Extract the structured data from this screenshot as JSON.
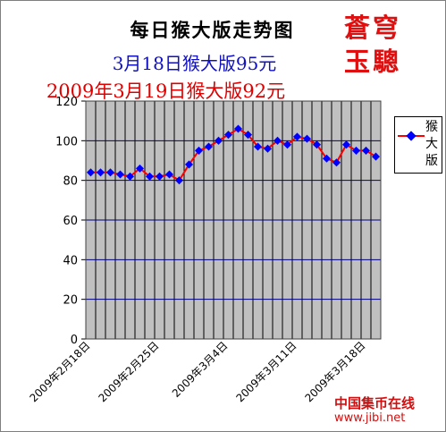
{
  "titles": {
    "main": "每日猴大版走势图",
    "line2": "3月18日猴大版95元",
    "line3": "2009年3月19日猴大版92元"
  },
  "brand": {
    "line1": "蒼穹",
    "line2": "玉驄"
  },
  "watermark": {
    "name": "中国集币在线",
    "url": "www.jibi.net"
  },
  "colors": {
    "plot_bg": "#c0c0c0",
    "gridline": "#000080",
    "series_line": "#ff0000",
    "marker": "#0000ff"
  },
  "chart_data": {
    "type": "line",
    "x": [
      "2009年2月18日",
      "2009年2月19日",
      "2009年2月20日",
      "2009年2月21日",
      "2009年2月22日",
      "2009年2月23日",
      "2009年2月24日",
      "2009年2月25日",
      "2009年2月26日",
      "2009年2月27日",
      "2009年2月28日",
      "2009年3月1日",
      "2009年3月2日",
      "2009年3月3日",
      "2009年3月4日",
      "2009年3月5日",
      "2009年3月6日",
      "2009年3月7日",
      "2009年3月8日",
      "2009年3月9日",
      "2009年3月10日",
      "2009年3月11日",
      "2009年3月12日",
      "2009年3月13日",
      "2009年3月14日",
      "2009年3月15日",
      "2009年3月16日",
      "2009年3月17日",
      "2009年3月18日",
      "2009年3月19日"
    ],
    "x_tick_labels": [
      "2009年2月18日",
      "2009年2月25日",
      "2009年3月4日",
      "2009年3月11日",
      "2009年3月18日"
    ],
    "series": [
      {
        "name": "猴大版",
        "values": [
          84,
          84,
          84,
          83,
          82,
          86,
          82,
          82,
          83,
          80,
          88,
          95,
          97,
          100,
          103,
          106,
          103,
          97,
          96,
          100,
          98,
          102,
          101,
          98,
          91,
          89,
          98,
          95,
          95,
          92
        ]
      }
    ],
    "ylim": [
      0,
      120
    ],
    "y_ticks": [
      0,
      20,
      40,
      60,
      80,
      100,
      120
    ],
    "grid": "horizontal",
    "legend_position": "right"
  }
}
